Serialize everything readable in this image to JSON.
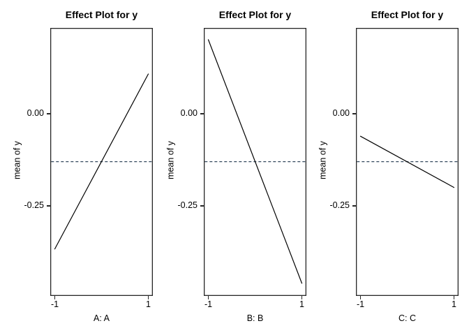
{
  "figure": {
    "background": "#ffffff"
  },
  "chart_data": {
    "type": "line",
    "layout": "three side-by-side panels, shared y scale, no grid",
    "shared": {
      "title": "Effect Plot for y",
      "ylabel": "mean of y",
      "yticks": [
        {
          "label": "0.00",
          "value": 0
        },
        {
          "label": "-0.25",
          "value": -0.25
        }
      ],
      "xticks": [
        {
          "label": "-1",
          "value": -1
        },
        {
          "label": "1",
          "value": 1
        }
      ],
      "ylim": [
        -0.49,
        0.23
      ],
      "xlim": [
        -1.1,
        1.1
      ],
      "grid": false,
      "line_color": "#000000",
      "mean_line": {
        "value": -0.13,
        "style": "dashed",
        "color": "#34495e"
      }
    },
    "panels": [
      {
        "title": "Effect Plot for y",
        "xlabel": "A: A",
        "x": [
          -1,
          1
        ],
        "values": [
          -0.367,
          0.108
        ]
      },
      {
        "title": "Effect Plot for y",
        "xlabel": "B: B",
        "x": [
          -1,
          1
        ],
        "values": [
          0.201,
          -0.46
        ]
      },
      {
        "title": "Effect Plot for y",
        "xlabel": "C: C",
        "x": [
          -1,
          1
        ],
        "values": [
          -0.061,
          -0.2
        ]
      }
    ]
  }
}
